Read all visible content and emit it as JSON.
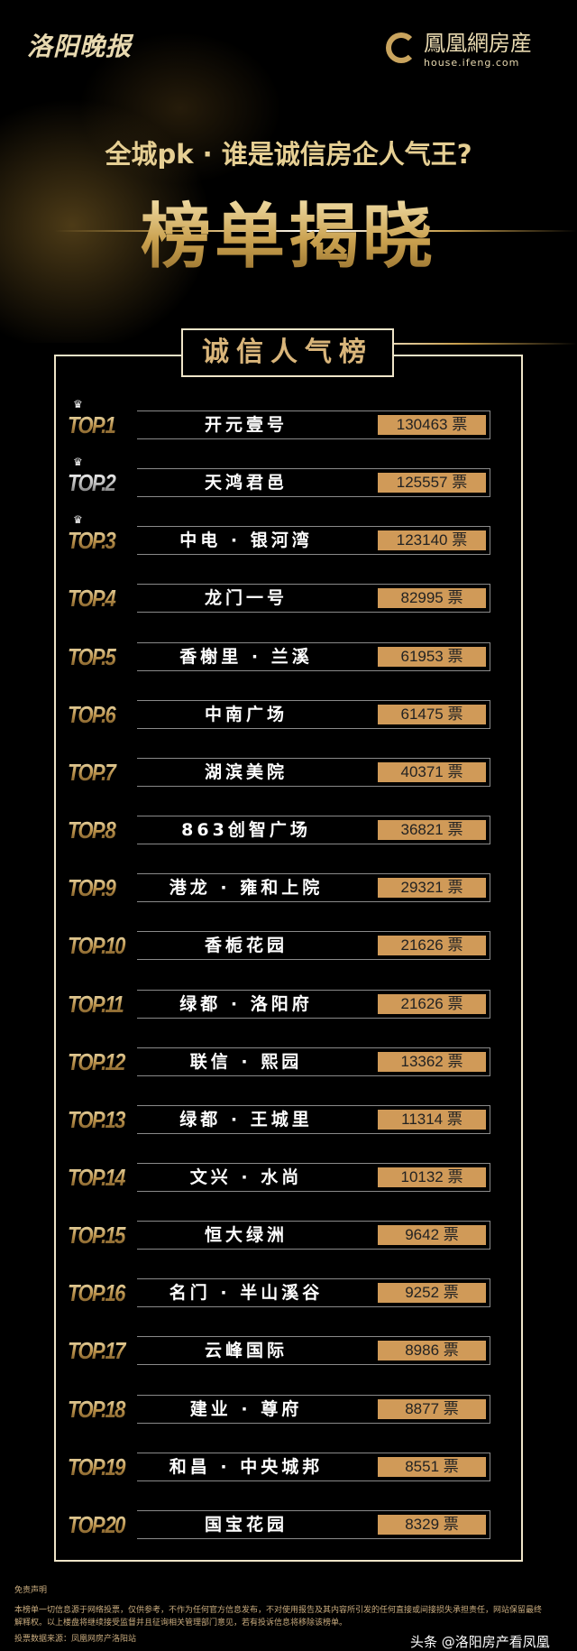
{
  "header": {
    "left_logo": "洛阳晚报",
    "right_logo_cn": "鳳凰網房産",
    "right_logo_en": "house.ifeng.com",
    "subtitle": "全城pk · 谁是诚信房企人气王?",
    "title": "榜单揭晓"
  },
  "board": {
    "title": "诚信人气榜",
    "unit": "票",
    "colors": {
      "accent": "#d09a58",
      "frame": "#efe5c8"
    },
    "rows": [
      {
        "rank": "TOP.1",
        "name": "开元壹号",
        "votes": "130463",
        "crown": true
      },
      {
        "rank": "TOP.2",
        "name": "天鸿君邑",
        "votes": "125557",
        "crown": true
      },
      {
        "rank": "TOP.3",
        "name": "中电 · 银河湾",
        "votes": "123140",
        "crown": true
      },
      {
        "rank": "TOP.4",
        "name": "龙门一号",
        "votes": "82995"
      },
      {
        "rank": "TOP.5",
        "name": "香榭里 · 兰溪",
        "votes": "61953"
      },
      {
        "rank": "TOP.6",
        "name": "中南广场",
        "votes": "61475"
      },
      {
        "rank": "TOP.7",
        "name": "湖滨美院",
        "votes": "40371"
      },
      {
        "rank": "TOP.8",
        "name": "863创智广场",
        "votes": "36821"
      },
      {
        "rank": "TOP.9",
        "name": "港龙 · 雍和上院",
        "votes": "29321"
      },
      {
        "rank": "TOP.10",
        "name": "香栀花园",
        "votes": "21626"
      },
      {
        "rank": "TOP.11",
        "name": "绿都 · 洛阳府",
        "votes": "21626"
      },
      {
        "rank": "TOP.12",
        "name": "联信 · 熙园",
        "votes": "13362"
      },
      {
        "rank": "TOP.13",
        "name": "绿都 · 王城里",
        "votes": "11314"
      },
      {
        "rank": "TOP.14",
        "name": "文兴 · 水尚",
        "votes": "10132"
      },
      {
        "rank": "TOP.15",
        "name": "恒大绿洲",
        "votes": "9642"
      },
      {
        "rank": "TOP.16",
        "name": "名门 · 半山溪谷",
        "votes": "9252"
      },
      {
        "rank": "TOP.17",
        "name": "云峰国际",
        "votes": "8986"
      },
      {
        "rank": "TOP.18",
        "name": "建业 · 尊府",
        "votes": "8877"
      },
      {
        "rank": "TOP.19",
        "name": "和昌 · 中央城邦",
        "votes": "8551"
      },
      {
        "rank": "TOP.20",
        "name": "国宝花园",
        "votes": "8329"
      }
    ]
  },
  "footer": {
    "disclaimer_title": "免责声明",
    "disclaimer": "本榜单一切信息源于网络投票，仅供参考，不作为任何官方信息发布，不对使用报告及其内容所引发的任何直接或间接损失承担责任，网站保留最终解释权。以上楼盘将继续接受监督并且征询相关管理部门意见，若有投诉信息将移除该榜单。",
    "source": "投票数据来源：凤凰网房产洛阳站",
    "watermark": "头条 @洛阳房产看凤凰"
  }
}
